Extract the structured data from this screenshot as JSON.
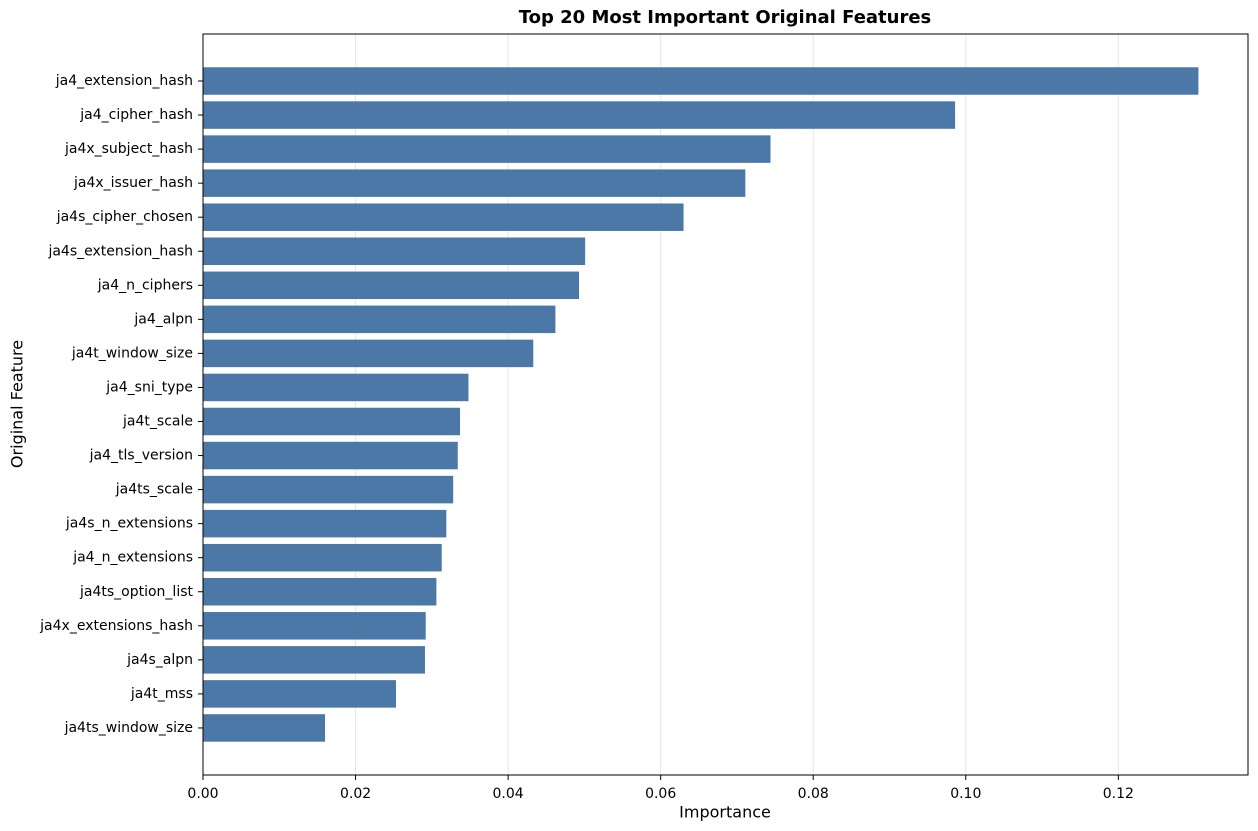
{
  "chart_data": {
    "type": "barh",
    "title": "Top 20 Most Important Original Features",
    "x_label": "Importance",
    "y_label": "Original Feature",
    "categories": [
      "ja4_extension_hash",
      "ja4_cipher_hash",
      "ja4x_subject_hash",
      "ja4x_issuer_hash",
      "ja4s_cipher_chosen",
      "ja4s_extension_hash",
      "ja4_n_ciphers",
      "ja4_alpn",
      "ja4t_window_size",
      "ja4_sni_type",
      "ja4t_scale",
      "ja4_tls_version",
      "ja4ts_scale",
      "ja4s_n_extensions",
      "ja4_n_extensions",
      "ja4ts_option_list",
      "ja4x_extensions_hash",
      "ja4s_alpn",
      "ja4t_mss",
      "ja4ts_window_size"
    ],
    "values": [
      0.1305,
      0.0986,
      0.0744,
      0.0711,
      0.063,
      0.0501,
      0.0493,
      0.0462,
      0.0433,
      0.0348,
      0.0337,
      0.0334,
      0.0328,
      0.0319,
      0.0313,
      0.0306,
      0.0292,
      0.0291,
      0.0253,
      0.016
    ],
    "color": "#4c78a8",
    "xlim": [
      0,
      0.137
    ],
    "xticks": [
      {
        "value": 0,
        "label": "0.00"
      },
      0.02,
      0.04,
      0.06,
      0.08,
      {
        "value": 0.1,
        "label": "0.10"
      },
      0.12
    ],
    "grid": true
  }
}
